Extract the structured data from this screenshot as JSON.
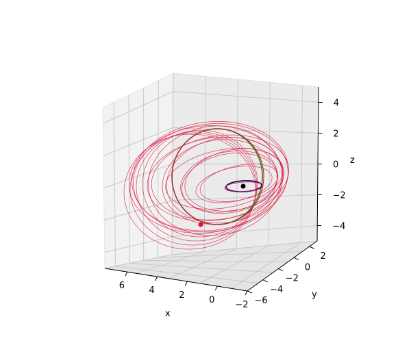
{
  "chart_data": {
    "type": "line",
    "projection": "3d",
    "axes": {
      "x": {
        "label": "x",
        "range": [
          -2,
          7.5
        ],
        "ticks": [
          6,
          4,
          2,
          0,
          -2
        ]
      },
      "y": {
        "label": "y",
        "range": [
          -6,
          3
        ],
        "ticks": [
          -6,
          -4,
          -2,
          0,
          2
        ]
      },
      "z": {
        "label": "z",
        "range": [
          -5,
          5
        ],
        "ticks": [
          4,
          2,
          0,
          -2,
          -4
        ]
      }
    },
    "grid": true,
    "series": [
      {
        "kind": "orbit",
        "shape": "circle",
        "color": "#228b22",
        "center": [
          0,
          0,
          0
        ],
        "radius": 4,
        "note_visible": "outer green circular orbit"
      },
      {
        "kind": "orbit",
        "shape": "circle",
        "color": "#1a0f6e",
        "center": [
          0,
          0,
          0
        ],
        "radius": 1,
        "note_visible": "inner dark orbit"
      },
      {
        "kind": "transfer",
        "color": "#dc143c",
        "count": 14,
        "start": [
          4,
          0,
          0
        ],
        "end_radius": 1,
        "note_visible": "many thin crimson trajectories spiralling from outer orbit to inner orbit"
      }
    ],
    "markers": [
      {
        "name": "central-body",
        "color": "#000000",
        "position": [
          0,
          0,
          0
        ]
      },
      {
        "name": "spacecraft",
        "color": "#dc143c",
        "position": [
          4,
          0.3,
          -2.6
        ]
      }
    ],
    "colors": {
      "outer_orbit": "#228b22",
      "inner_orbit": "#1a0f6e",
      "trajectory": "#dc143c"
    }
  }
}
